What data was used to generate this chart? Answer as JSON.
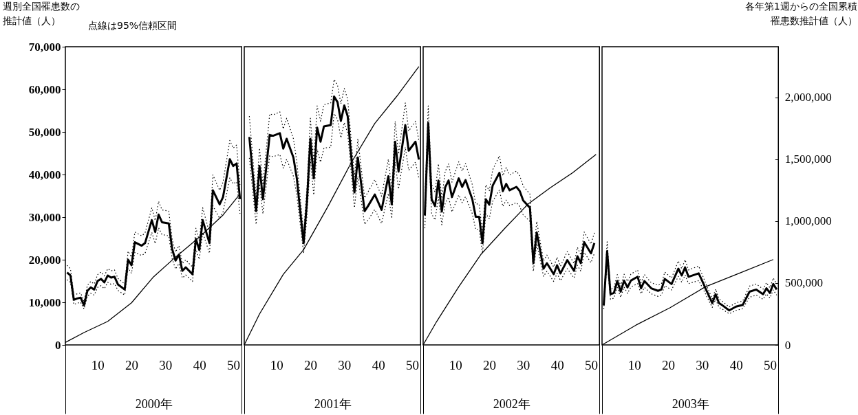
{
  "chart_data": [
    {
      "type": "line",
      "xlabel": "2000年",
      "ylabel": "週別全国罹患数の推計値（人）",
      "annotations": [
        "点線は95%信頼区間"
      ],
      "tick_labels": "xy",
      "xlim": [
        0.5,
        52.5
      ],
      "xticks": [
        10,
        20,
        30,
        40,
        50
      ],
      "ylim": [
        0,
        70000
      ],
      "yticks": [
        0,
        {
          "value": 10000,
          "label": "10,000"
        },
        {
          "value": 20000,
          "label": "20,000"
        },
        {
          "value": 30000,
          "label": "30,000"
        },
        {
          "value": 40000,
          "label": "40,000"
        },
        {
          "value": 50000,
          "label": "50,000"
        },
        {
          "value": 60000,
          "label": "60,000"
        },
        {
          "value": 70000,
          "label": "70,000"
        }
      ],
      "y2lim": [
        0,
        2410000
      ],
      "x": [
        1,
        2,
        3,
        4,
        5,
        6,
        7,
        8,
        9,
        10,
        11,
        12,
        13,
        14,
        15,
        16,
        18,
        19,
        20,
        21,
        23,
        24,
        26,
        27,
        28,
        29,
        31,
        32,
        33,
        34,
        35,
        36,
        37,
        38,
        39,
        40,
        41,
        43,
        44,
        46,
        47,
        49,
        50,
        51,
        52
      ],
      "series": [
        {
          "color": "#000000",
          "values": [
            17000,
            16300,
            10600,
            10900,
            11100,
            9300,
            12700,
            13500,
            13000,
            15000,
            15500,
            14700,
            16300,
            15800,
            16000,
            14200,
            13000,
            20000,
            18700,
            24100,
            23300,
            23900,
            29300,
            26500,
            30600,
            28800,
            28500,
            22500,
            19800,
            21200,
            17400,
            18200,
            17400,
            16600,
            24900,
            22300,
            29300,
            23900,
            36300,
            33000,
            34700,
            43600,
            42000,
            42600,
            34200
          ]
        },
        {
          "type": "line",
          "line_style": "dotted",
          "color": "#000000",
          "values": [
            15300,
            14700,
            9500,
            9800,
            10000,
            8400,
            11400,
            12100,
            11700,
            13500,
            13900,
            13200,
            14700,
            14200,
            14400,
            12800,
            11700,
            18000,
            16800,
            21700,
            21000,
            21500,
            26400,
            23800,
            27500,
            25900,
            25600,
            20200,
            17800,
            19100,
            15700,
            16400,
            15700,
            14900,
            22400,
            20100,
            26400,
            21500,
            32700,
            29700,
            31200,
            39200,
            37800,
            38300,
            30800
          ]
        },
        {
          "type": "line",
          "line_style": "dotted",
          "color": "#000000",
          "values": [
            18700,
            17900,
            11700,
            12000,
            12200,
            10200,
            14000,
            14900,
            14300,
            16500,
            17100,
            16200,
            17900,
            17400,
            17600,
            15600,
            14300,
            22000,
            20600,
            26500,
            25600,
            26300,
            32200,
            29200,
            33700,
            31700,
            31400,
            24800,
            21800,
            23300,
            19100,
            20000,
            19100,
            18300,
            27400,
            24500,
            32200,
            26300,
            39900,
            36300,
            38200,
            48000,
            46200,
            46900,
            37600
          ]
        },
        {
          "type": "line",
          "axis": "y2",
          "color": "#000000",
          "x": [
            0.5,
            6,
            13,
            20,
            26.5,
            33,
            40,
            47,
            52
          ],
          "values": [
            20000,
            100000,
            190000,
            340000,
            550000,
            710000,
            870000,
            1050000,
            1220000
          ]
        }
      ]
    },
    {
      "type": "line",
      "xlabel": "2001年",
      "tick_labels": "x",
      "xlim": [
        0.5,
        52.5
      ],
      "xticks": [
        10,
        20,
        30,
        40,
        50
      ],
      "ylim": [
        0,
        70000
      ],
      "y2lim": [
        0,
        2410000
      ],
      "x": [
        2,
        4,
        5,
        6,
        8,
        9,
        11,
        12,
        13,
        15,
        16,
        18,
        19,
        20,
        21,
        22,
        23,
        24,
        26,
        27,
        28,
        29,
        30,
        31,
        33,
        34,
        36,
        37,
        39,
        41,
        43,
        44,
        45,
        46,
        48,
        49,
        51,
        52
      ],
      "series": [
        {
          "color": "#000000",
          "values": [
            48800,
            31400,
            42000,
            34200,
            49300,
            49100,
            49700,
            46100,
            48400,
            44000,
            39100,
            23900,
            33700,
            48400,
            39100,
            51000,
            47700,
            51300,
            51600,
            58300,
            57000,
            52600,
            56200,
            53700,
            35800,
            44000,
            31400,
            32600,
            35300,
            31700,
            39600,
            33000,
            47700,
            40700,
            51600,
            45600,
            47700,
            43500
          ]
        },
        {
          "type": "line",
          "line_style": "dotted",
          "color": "#000000",
          "values": [
            43900,
            28300,
            37800,
            30800,
            44400,
            44200,
            44700,
            41500,
            43600,
            39600,
            35200,
            21500,
            30300,
            43600,
            35200,
            45900,
            42900,
            46200,
            46400,
            54300,
            53000,
            48600,
            52200,
            49700,
            32200,
            39600,
            28300,
            29300,
            31800,
            28500,
            35600,
            29700,
            42900,
            36600,
            46400,
            41000,
            42900,
            39100
          ]
        },
        {
          "type": "line",
          "line_style": "dotted",
          "color": "#000000",
          "values": [
            53700,
            34500,
            46200,
            37600,
            54200,
            54000,
            54700,
            50700,
            53200,
            48400,
            43000,
            26300,
            37100,
            53200,
            43000,
            56100,
            52500,
            56400,
            56800,
            62300,
            61000,
            56600,
            60200,
            57700,
            39400,
            48400,
            34500,
            35900,
            38800,
            34900,
            43600,
            36300,
            52500,
            44800,
            56800,
            50200,
            52500,
            47900
          ]
        },
        {
          "type": "line",
          "axis": "y2",
          "color": "#000000",
          "x": [
            0.5,
            5,
            12,
            18,
            25,
            32,
            39,
            45.5,
            52
          ],
          "values": [
            0,
            250000,
            570000,
            770000,
            1110000,
            1470000,
            1790000,
            2010000,
            2250000
          ]
        }
      ]
    },
    {
      "type": "line",
      "xlabel": "2002年",
      "tick_labels": "x",
      "xlim": [
        0.5,
        52.5
      ],
      "xticks": [
        10,
        20,
        30,
        40,
        50
      ],
      "ylim": [
        0,
        70000
      ],
      "y2lim": [
        0,
        2410000
      ],
      "x": [
        1,
        2,
        3,
        4,
        5,
        6,
        7,
        8,
        9,
        11,
        12,
        13,
        15,
        16,
        17,
        18,
        19,
        20,
        21,
        23,
        24,
        25,
        26,
        28,
        29,
        30,
        32,
        33,
        34,
        36,
        37,
        39,
        40,
        41,
        43,
        45,
        46,
        47,
        48,
        50,
        51
      ],
      "series": [
        {
          "color": "#000000",
          "values": [
            30400,
            52100,
            34200,
            32600,
            38600,
            31300,
            37000,
            38600,
            34700,
            39100,
            37100,
            38700,
            34200,
            30100,
            30100,
            23900,
            34200,
            32900,
            37400,
            40400,
            36100,
            37800,
            36300,
            37100,
            36100,
            33900,
            32200,
            19200,
            26400,
            17900,
            19200,
            16600,
            18700,
            16800,
            19900,
            17400,
            20800,
            19200,
            24100,
            21500,
            23900
          ]
        },
        {
          "type": "line",
          "line_style": "dotted",
          "color": "#000000",
          "values": [
            27400,
            48100,
            30800,
            29300,
            34700,
            28200,
            33300,
            34700,
            31200,
            35200,
            33400,
            34800,
            30800,
            27100,
            27100,
            21500,
            30800,
            29600,
            33700,
            36400,
            32500,
            34000,
            32700,
            33400,
            32500,
            30500,
            29000,
            17300,
            23800,
            16100,
            17300,
            14900,
            16800,
            15100,
            17900,
            15700,
            18700,
            17300,
            21700,
            19300,
            21500
          ]
        },
        {
          "type": "line",
          "line_style": "dotted",
          "color": "#000000",
          "values": [
            33400,
            56100,
            37600,
            35900,
            42500,
            34400,
            40700,
            42500,
            38200,
            43000,
            40800,
            42600,
            37600,
            33100,
            33100,
            26300,
            37600,
            36200,
            41100,
            44400,
            39700,
            41600,
            39900,
            40800,
            39700,
            37300,
            35400,
            21100,
            29000,
            19700,
            21100,
            18300,
            20600,
            18500,
            21900,
            19100,
            22900,
            21100,
            26500,
            23700,
            26300
          ]
        },
        {
          "type": "line",
          "axis": "y2",
          "color": "#000000",
          "x": [
            0.5,
            4.5,
            11,
            17.5,
            24.5,
            31.5,
            38,
            44.5,
            51.5
          ],
          "values": [
            0,
            190000,
            470000,
            730000,
            940000,
            1140000,
            1270000,
            1390000,
            1540000
          ]
        }
      ]
    },
    {
      "type": "line",
      "xlabel": "2003年",
      "y2label": "各年第1週からの全国累積罹患数推計値（人）",
      "xlim": [
        0.5,
        52.5
      ],
      "xticks": [
        10,
        20,
        30,
        40,
        50
      ],
      "ylim": [
        0,
        70000
      ],
      "y2lim": [
        0,
        2410000
      ],
      "y2ticks": [
        0,
        {
          "value": 500000,
          "label": "500,000"
        },
        {
          "value": 1000000,
          "label": "1,000,000"
        },
        {
          "value": 1500000,
          "label": "1,500,000"
        },
        {
          "value": 2000000,
          "label": "2,000,000"
        }
      ],
      "x": [
        1,
        2,
        3,
        4,
        5,
        6,
        7,
        8,
        9,
        11,
        12,
        13,
        15,
        17,
        18,
        19,
        21,
        23,
        24,
        25,
        26,
        29,
        30,
        31,
        33,
        34,
        35,
        36,
        38,
        40,
        42,
        44,
        46,
        48,
        49,
        50,
        51,
        52
      ],
      "series": [
        {
          "color": "#000000",
          "values": [
            9300,
            22000,
            11900,
            12200,
            15000,
            12500,
            15100,
            13500,
            15100,
            16000,
            13300,
            15000,
            13300,
            12700,
            13000,
            15500,
            14300,
            17900,
            16300,
            18200,
            16000,
            16800,
            15100,
            13300,
            9800,
            11900,
            9800,
            9300,
            8100,
            9000,
            9400,
            12500,
            13000,
            11900,
            13300,
            12200,
            14300,
            13000
          ]
        },
        {
          "type": "line",
          "line_style": "dotted",
          "color": "#000000",
          "values": [
            8400,
            19800,
            10700,
            11000,
            13500,
            11200,
            13600,
            12100,
            13600,
            14400,
            12000,
            13500,
            12000,
            11400,
            11700,
            13900,
            12900,
            16100,
            14700,
            16400,
            14400,
            15100,
            13600,
            12000,
            8800,
            10700,
            8800,
            8400,
            7300,
            8100,
            8500,
            11200,
            11700,
            10700,
            12000,
            11000,
            12900,
            11700
          ]
        },
        {
          "type": "line",
          "line_style": "dotted",
          "color": "#000000",
          "values": [
            10200,
            24200,
            13100,
            13400,
            16500,
            13800,
            16600,
            14900,
            16600,
            17600,
            14600,
            16500,
            14600,
            14000,
            14300,
            17100,
            15700,
            19700,
            17900,
            20000,
            17600,
            18500,
            16600,
            14600,
            10800,
            13100,
            10800,
            10200,
            8900,
            9900,
            10300,
            13800,
            14300,
            13100,
            14600,
            13400,
            15700,
            14300
          ]
        },
        {
          "type": "line",
          "axis": "y2",
          "color": "#000000",
          "x": [
            0.5,
            10.5,
            20.5,
            31,
            41,
            51
          ],
          "values": [
            0,
            160000,
            300000,
            470000,
            580000,
            690000
          ]
        }
      ]
    }
  ]
}
